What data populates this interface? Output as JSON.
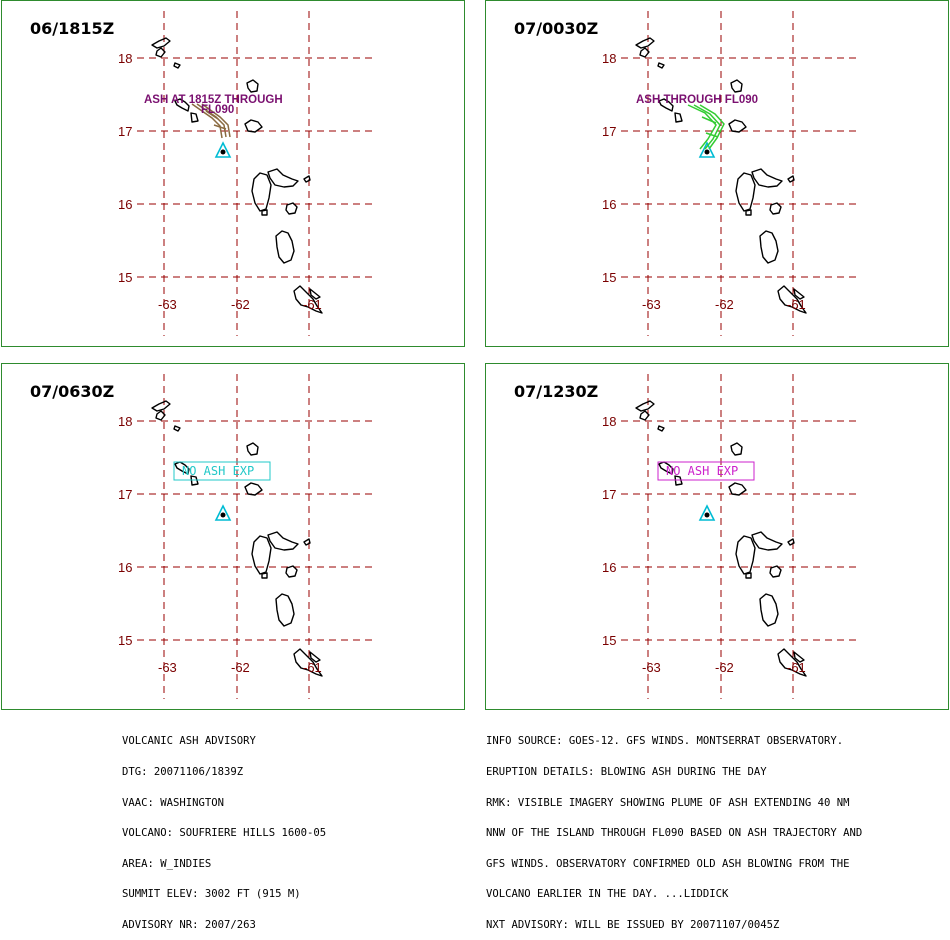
{
  "panels": [
    {
      "title": "06/1815Z",
      "labels": [
        "ASH AT 1815Z THROUGH",
        "FL090"
      ],
      "boxed": false,
      "color": "#7a1070",
      "plume": "#8a6a40"
    },
    {
      "title": "07/0030Z",
      "labels": [
        "ASH THROUGH FL090"
      ],
      "boxed": false,
      "color": "#7a1070",
      "plume": "#33cc33"
    },
    {
      "title": "07/0630Z",
      "labels": [
        "NO ASH EXP"
      ],
      "boxed": true,
      "color": "#22c8c8",
      "plume": ""
    },
    {
      "title": "07/1230Z",
      "labels": [
        "NO ASH EXP"
      ],
      "boxed": true,
      "color": "#cc22cc",
      "plume": ""
    }
  ],
  "grid": {
    "lat_labels": [
      "18",
      "17",
      "16",
      "15"
    ],
    "lon_labels": [
      "-63",
      "-62",
      "-61"
    ],
    "line_color": "#990000",
    "label_color": "#7a0000"
  },
  "volcano_color": "#00bcd4",
  "footer_left": [
    "VOLCANIC ASH ADVISORY",
    "DTG: 20071106/1839Z",
    "VAAC: WASHINGTON",
    "VOLCANO: SOUFRIERE HILLS 1600-05",
    "AREA: W_INDIES",
    "SUMMIT ELEV: 3002 FT (915 M)",
    "ADVISORY NR: 2007/263"
  ],
  "footer_right": [
    "INFO SOURCE: GOES-12. GFS WINDS. MONTSERRAT OBSERVATORY.",
    "ERUPTION DETAILS: BLOWING ASH DURING THE DAY",
    "RMK: VISIBLE IMAGERY SHOWING PLUME OF ASH EXTENDING 40 NM",
    "NNW OF THE ISLAND THROUGH FL090 BASED ON ASH TRAJECTORY AND",
    "GFS WINDS. OBSERVATORY CONFIRMED OLD ASH BLOWING FROM THE",
    "VOLCANO EARLIER IN THE DAY. ...LIDDICK",
    "NXT ADVISORY: WILL BE ISSUED BY 20071107/0045Z"
  ]
}
